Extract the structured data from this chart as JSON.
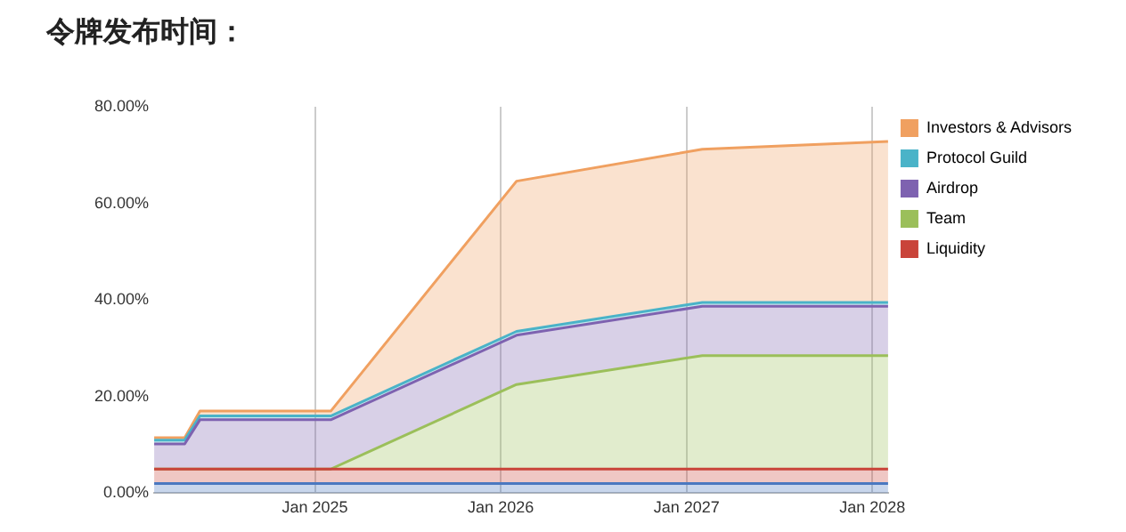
{
  "chart_data": {
    "type": "area",
    "title": "令牌发布时间：",
    "stacked": true,
    "grid": "x",
    "legend": "right",
    "marker": "none",
    "x": [
      "2024-02-20",
      "2024-04-20",
      "2024-05-20",
      "2025-02-01",
      "2026-02-01",
      "2027-02-01",
      "2028-02-01"
    ],
    "xlim": [
      "2024-02-20",
      "2028-02-01"
    ],
    "xticks": [
      {
        "value": "2025-01-01",
        "label": "Jan 2025"
      },
      {
        "value": "2026-01-01",
        "label": "Jan 2026"
      },
      {
        "value": "2027-01-01",
        "label": "Jan 2027"
      },
      {
        "value": "2028-01-01",
        "label": "Jan 2028"
      }
    ],
    "ylim": [
      0,
      80
    ],
    "yticks": [
      {
        "value": 0,
        "label": "0.00%"
      },
      {
        "value": 20,
        "label": "20.00%"
      },
      {
        "value": 40,
        "label": "40.00%"
      },
      {
        "value": 60,
        "label": "60.00%"
      },
      {
        "value": 80,
        "label": "80.00%"
      }
    ],
    "series": [
      {
        "color": "#4a78c0",
        "values": [
          2,
          2,
          2,
          2,
          2,
          2,
          2
        ]
      },
      {
        "name": "Liquidity",
        "color": "#c9443a",
        "values": [
          3,
          3,
          3,
          3,
          3,
          3,
          3
        ]
      },
      {
        "name": "Team",
        "color": "#9bbf5a",
        "values": [
          0,
          0,
          0,
          0,
          17.5,
          23.5,
          23.5
        ]
      },
      {
        "name": "Airdrop",
        "color": "#7e62b0",
        "values": [
          5.2,
          5.2,
          10.2,
          10.2,
          10.2,
          10.2,
          10.2
        ]
      },
      {
        "name": "Protocol Guild",
        "color": "#4ab3c8",
        "values": [
          0.8,
          0.8,
          0.8,
          0.8,
          0.8,
          0.8,
          0.8
        ]
      },
      {
        "name": "Investors & Advisors",
        "color": "#f0a060",
        "values": [
          0.5,
          0.5,
          1,
          1,
          31.1,
          31.7,
          33.3
        ]
      }
    ]
  }
}
